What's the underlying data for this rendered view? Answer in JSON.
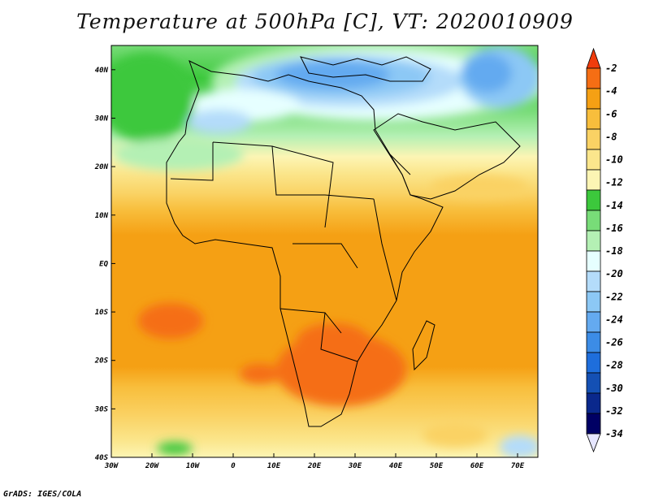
{
  "title": "Temperature at 500hPa [C], VT: 2020010909",
  "credit": "GrADS: IGES/COLA",
  "map": {
    "lat_ticks": [
      "40N",
      "30N",
      "20N",
      "10N",
      "EQ",
      "10S",
      "20S",
      "30S",
      "40S"
    ],
    "lon_ticks": [
      "30W",
      "20W",
      "10W",
      "0",
      "10E",
      "20E",
      "30E",
      "40E",
      "50E",
      "60E",
      "70E"
    ],
    "lat_range": [
      -40,
      45
    ],
    "lon_range": [
      -30,
      75
    ]
  },
  "colorbar": {
    "labels": [
      "-2",
      "-4",
      "-6",
      "-8",
      "-10",
      "-12",
      "-14",
      "-16",
      "-18",
      "-20",
      "-22",
      "-24",
      "-26",
      "-28",
      "-30",
      "-32",
      "-34"
    ],
    "colors": [
      "#f03c0c",
      "#f56e14",
      "#f5a014",
      "#f8be3c",
      "#fad264",
      "#fbe68c",
      "#fcf5b4",
      "#3cc83c",
      "#78dc78",
      "#b4f0b4",
      "#e6ffff",
      "#b4dcfa",
      "#8cc8f5",
      "#64aaf0",
      "#3c8ce6",
      "#1e6edc",
      "#1450b4",
      "#0a288c",
      "#000064",
      "#e6e6ff"
    ]
  }
}
